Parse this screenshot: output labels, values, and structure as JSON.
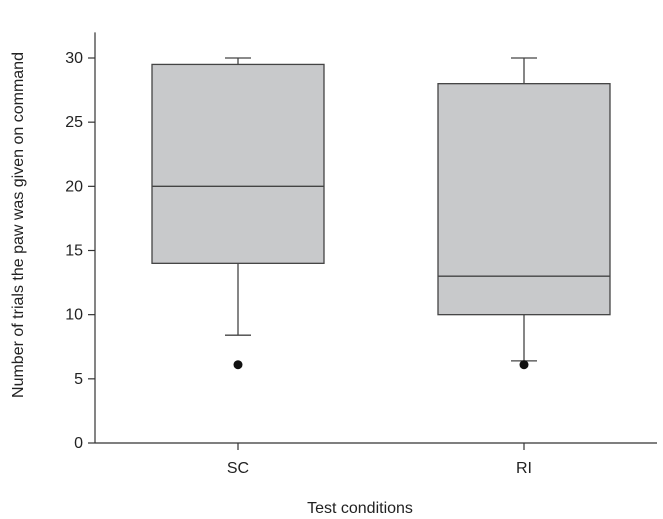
{
  "chart_data": {
    "type": "box",
    "title": "",
    "xlabel": "Test conditions",
    "ylabel": "Number of trials the paw was given on command",
    "ylim": [
      0,
      32
    ],
    "yticks": [
      0,
      5,
      10,
      15,
      20,
      25,
      30
    ],
    "categories": [
      "SC",
      "RI"
    ],
    "boxes": [
      {
        "category": "SC",
        "whisker_low": 8.4,
        "q1": 14,
        "median": 20,
        "q3": 29.5,
        "whisker_high": 30,
        "outliers": [
          6.1
        ]
      },
      {
        "category": "RI",
        "whisker_low": 6.4,
        "q1": 10,
        "median": 13,
        "q3": 28,
        "whisker_high": 30,
        "outliers": [
          6.1
        ]
      }
    ],
    "colors": {
      "box_fill": "#c8c9cb",
      "box_stroke": "#444444",
      "outlier": "#111111"
    },
    "grid": false
  }
}
